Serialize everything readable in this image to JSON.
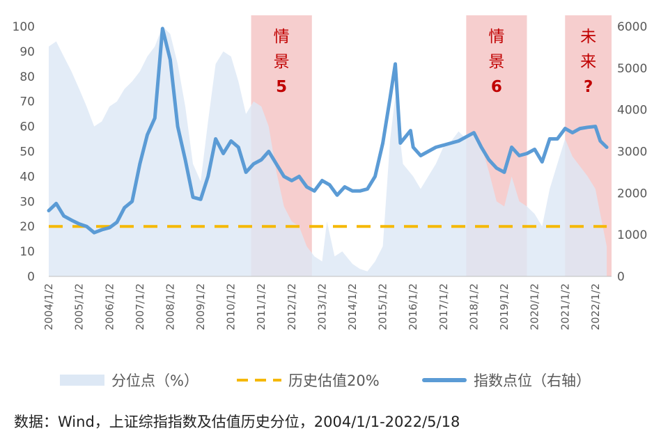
{
  "chart_data": {
    "type": "line",
    "x_ticks": [
      "2004/1/2",
      "2005/1/2",
      "2006/1/2",
      "2007/1/2",
      "2008/1/2",
      "2009/1/2",
      "2010/1/2",
      "2011/1/2",
      "2012/1/2",
      "2013/1/2",
      "2014/1/2",
      "2015/1/2",
      "2016/1/2",
      "2017/1/2",
      "2018/1/2",
      "2019/1/2",
      "2020/1/2",
      "2021/1/2",
      "2022/1/2"
    ],
    "y_left": {
      "ticks": [
        0,
        10,
        20,
        30,
        40,
        50,
        60,
        70,
        80,
        90,
        100
      ],
      "range": [
        0,
        100
      ]
    },
    "y_right": {
      "ticks": [
        0,
        1000,
        2000,
        3000,
        4000,
        5000,
        6000
      ],
      "range": [
        0,
        6000
      ]
    },
    "x_range": [
      "2004/1/2",
      "2022/7/15"
    ],
    "series": [
      {
        "name": "分位点（%）",
        "type": "area",
        "axis": "left",
        "color": "#dde8f5",
        "points": [
          [
            "2004/1/2",
            92
          ],
          [
            "2004/4/1",
            94
          ],
          [
            "2004/7/1",
            88
          ],
          [
            "2004/10/1",
            82
          ],
          [
            "2005/1/2",
            75
          ],
          [
            "2005/4/1",
            68
          ],
          [
            "2005/7/1",
            60
          ],
          [
            "2005/10/1",
            62
          ],
          [
            "2006/1/2",
            68
          ],
          [
            "2006/4/1",
            70
          ],
          [
            "2006/7/1",
            75
          ],
          [
            "2006/10/1",
            78
          ],
          [
            "2007/1/2",
            82
          ],
          [
            "2007/4/1",
            88
          ],
          [
            "2007/7/1",
            92
          ],
          [
            "2007/10/1",
            100
          ],
          [
            "2008/1/2",
            97
          ],
          [
            "2008/4/1",
            85
          ],
          [
            "2008/7/1",
            68
          ],
          [
            "2008/10/1",
            45
          ],
          [
            "2009/1/2",
            38
          ],
          [
            "2009/4/1",
            62
          ],
          [
            "2009/7/1",
            85
          ],
          [
            "2009/10/1",
            90
          ],
          [
            "2010/1/2",
            88
          ],
          [
            "2010/4/1",
            78
          ],
          [
            "2010/7/1",
            65
          ],
          [
            "2010/10/1",
            70
          ],
          [
            "2011/1/2",
            68
          ],
          [
            "2011/4/1",
            60
          ],
          [
            "2011/7/1",
            42
          ],
          [
            "2011/10/1",
            28
          ],
          [
            "2012/1/2",
            22
          ],
          [
            "2012/4/1",
            20
          ],
          [
            "2012/7/1",
            12
          ],
          [
            "2012/10/1",
            8
          ],
          [
            "2013/1/2",
            6
          ],
          [
            "2013/3/1",
            22
          ],
          [
            "2013/6/1",
            8
          ],
          [
            "2013/9/1",
            10
          ],
          [
            "2014/1/2",
            5
          ],
          [
            "2014/4/1",
            3
          ],
          [
            "2014/7/1",
            2
          ],
          [
            "2014/10/1",
            6
          ],
          [
            "2015/1/2",
            12
          ],
          [
            "2015/4/1",
            55
          ],
          [
            "2015/6/1",
            72
          ],
          [
            "2015/9/1",
            45
          ],
          [
            "2016/1/2",
            40
          ],
          [
            "2016/4/1",
            35
          ],
          [
            "2016/7/1",
            40
          ],
          [
            "2016/10/1",
            45
          ],
          [
            "2017/1/2",
            52
          ],
          [
            "2017/4/1",
            54
          ],
          [
            "2017/7/1",
            58
          ],
          [
            "2017/10/1",
            55
          ],
          [
            "2018/1/2",
            58
          ],
          [
            "2018/4/1",
            52
          ],
          [
            "2018/7/1",
            42
          ],
          [
            "2018/10/1",
            30
          ],
          [
            "2019/1/2",
            28
          ],
          [
            "2019/4/1",
            40
          ],
          [
            "2019/7/1",
            30
          ],
          [
            "2019/10/1",
            28
          ],
          [
            "2020/1/2",
            25
          ],
          [
            "2020/4/1",
            20
          ],
          [
            "2020/7/1",
            35
          ],
          [
            "2020/10/1",
            45
          ],
          [
            "2021/1/2",
            55
          ],
          [
            "2021/4/1",
            48
          ],
          [
            "2021/7/1",
            44
          ],
          [
            "2021/10/1",
            40
          ],
          [
            "2022/1/2",
            35
          ],
          [
            "2022/3/1",
            25
          ],
          [
            "2022/5/18",
            12
          ]
        ]
      },
      {
        "name": "历史估值20%",
        "type": "line",
        "style": "dashed",
        "axis": "left",
        "color": "#f5b800",
        "points": [
          [
            "2004/1/2",
            20
          ],
          [
            "2022/5/18",
            20
          ]
        ]
      },
      {
        "name": "指数点位（右轴）",
        "type": "line",
        "axis": "right",
        "color": "#5b9bd5",
        "points": [
          [
            "2004/1/2",
            1580
          ],
          [
            "2004/4/1",
            1750
          ],
          [
            "2004/7/1",
            1450
          ],
          [
            "2004/10/1",
            1350
          ],
          [
            "2005/1/2",
            1260
          ],
          [
            "2005/4/1",
            1200
          ],
          [
            "2005/7/1",
            1050
          ],
          [
            "2005/10/1",
            1120
          ],
          [
            "2006/1/2",
            1170
          ],
          [
            "2006/4/1",
            1300
          ],
          [
            "2006/7/1",
            1650
          ],
          [
            "2006/10/1",
            1800
          ],
          [
            "2007/1/2",
            2700
          ],
          [
            "2007/4/1",
            3400
          ],
          [
            "2007/7/1",
            3800
          ],
          [
            "2007/10/1",
            5950
          ],
          [
            "2008/1/2",
            5200
          ],
          [
            "2008/4/1",
            3600
          ],
          [
            "2008/7/1",
            2800
          ],
          [
            "2008/10/1",
            1900
          ],
          [
            "2009/1/2",
            1850
          ],
          [
            "2009/4/1",
            2400
          ],
          [
            "2009/7/1",
            3300
          ],
          [
            "2009/10/1",
            2950
          ],
          [
            "2010/1/2",
            3250
          ],
          [
            "2010/4/1",
            3100
          ],
          [
            "2010/7/1",
            2500
          ],
          [
            "2010/10/1",
            2700
          ],
          [
            "2011/1/2",
            2800
          ],
          [
            "2011/4/1",
            3000
          ],
          [
            "2011/7/1",
            2700
          ],
          [
            "2011/10/1",
            2400
          ],
          [
            "2012/1/2",
            2300
          ],
          [
            "2012/4/1",
            2400
          ],
          [
            "2012/7/1",
            2150
          ],
          [
            "2012/10/1",
            2050
          ],
          [
            "2013/1/2",
            2300
          ],
          [
            "2013/4/1",
            2200
          ],
          [
            "2013/7/1",
            1950
          ],
          [
            "2013/10/1",
            2150
          ],
          [
            "2014/1/2",
            2050
          ],
          [
            "2014/4/1",
            2050
          ],
          [
            "2014/7/1",
            2100
          ],
          [
            "2014/10/1",
            2400
          ],
          [
            "2015/1/2",
            3200
          ],
          [
            "2015/4/1",
            4300
          ],
          [
            "2015/6/1",
            5100
          ],
          [
            "2015/8/1",
            3200
          ],
          [
            "2015/12/1",
            3500
          ],
          [
            "2016/1/2",
            3100
          ],
          [
            "2016/4/1",
            2900
          ],
          [
            "2016/7/1",
            3000
          ],
          [
            "2016/10/1",
            3100
          ],
          [
            "2017/1/2",
            3150
          ],
          [
            "2017/4/1",
            3200
          ],
          [
            "2017/7/1",
            3250
          ],
          [
            "2017/10/1",
            3350
          ],
          [
            "2018/1/2",
            3450
          ],
          [
            "2018/4/1",
            3100
          ],
          [
            "2018/7/1",
            2800
          ],
          [
            "2018/10/1",
            2600
          ],
          [
            "2019/1/2",
            2500
          ],
          [
            "2019/4/1",
            3100
          ],
          [
            "2019/7/1",
            2900
          ],
          [
            "2019/10/1",
            2950
          ],
          [
            "2020/1/2",
            3050
          ],
          [
            "2020/4/1",
            2750
          ],
          [
            "2020/7/1",
            3300
          ],
          [
            "2020/10/1",
            3300
          ],
          [
            "2021/1/2",
            3550
          ],
          [
            "2021/4/1",
            3450
          ],
          [
            "2021/7/1",
            3550
          ],
          [
            "2021/10/1",
            3580
          ],
          [
            "2022/1/2",
            3600
          ],
          [
            "2022/3/1",
            3250
          ],
          [
            "2022/5/18",
            3100
          ]
        ]
      }
    ],
    "shaded_regions": [
      {
        "from": "2010/9/1",
        "to": "2012/9/1",
        "label_lines": [
          "情",
          "景",
          "5"
        ],
        "color": "#f4c6c6"
      },
      {
        "from": "2017/10/1",
        "to": "2019/10/1",
        "label_lines": [
          "情",
          "景",
          "6"
        ],
        "color": "#f4c6c6"
      },
      {
        "from": "2021/1/2",
        "to": "2022/7/15",
        "label_lines": [
          "未",
          "来",
          "?"
        ],
        "color": "#f4c6c6"
      }
    ]
  },
  "legend": {
    "area_label": "分位点（%）",
    "dash_label": "历史估值20%",
    "line_label": "指数点位（右轴）"
  },
  "footnote": "数据：Wind，上证综指指数及估值历史分位，2004/1/1-2022/5/18"
}
